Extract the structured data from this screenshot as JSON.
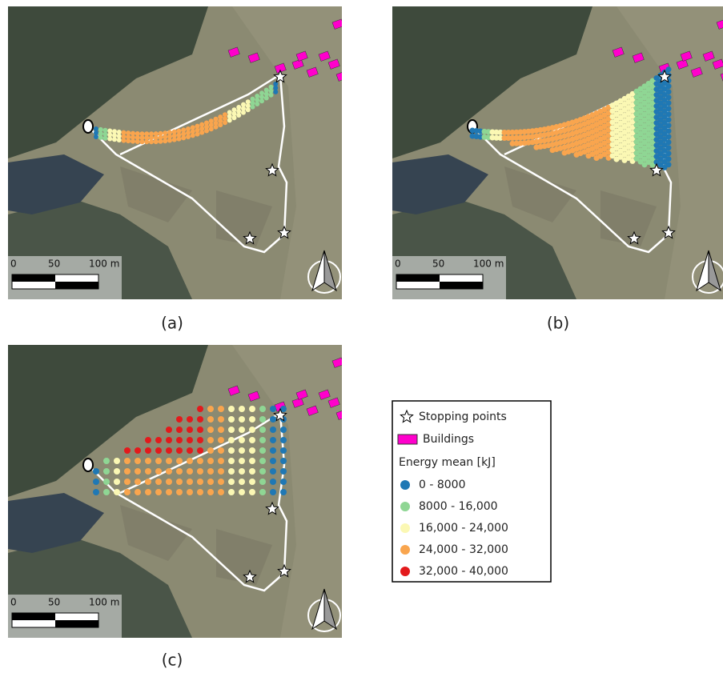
{
  "panels": [
    {
      "caption": "(a)",
      "scale_labels": [
        "0",
        "50",
        "100 m"
      ]
    },
    {
      "caption": "(b)",
      "scale_labels": [
        "0",
        "50",
        "100 m"
      ]
    },
    {
      "caption": "(c)",
      "scale_labels": [
        "0",
        "50",
        "100 m"
      ]
    }
  ],
  "legend": {
    "items": [
      {
        "label": "Stopping points",
        "color": "#ffffff"
      },
      {
        "label": "Buildings",
        "color": "#ff00cc"
      }
    ],
    "title": "Energy mean [kJ]",
    "classes": [
      {
        "label": "0 - 8000",
        "color": "#1f78b4"
      },
      {
        "label": "8000 - 16,000",
        "color": "#8fd694"
      },
      {
        "label": "16,000 - 24,000",
        "color": "#fbf8b4"
      },
      {
        "label": "24,000 - 32,000",
        "color": "#f9a54e"
      },
      {
        "label": "32,000 - 40,000",
        "color": "#e31a1c"
      }
    ]
  }
}
